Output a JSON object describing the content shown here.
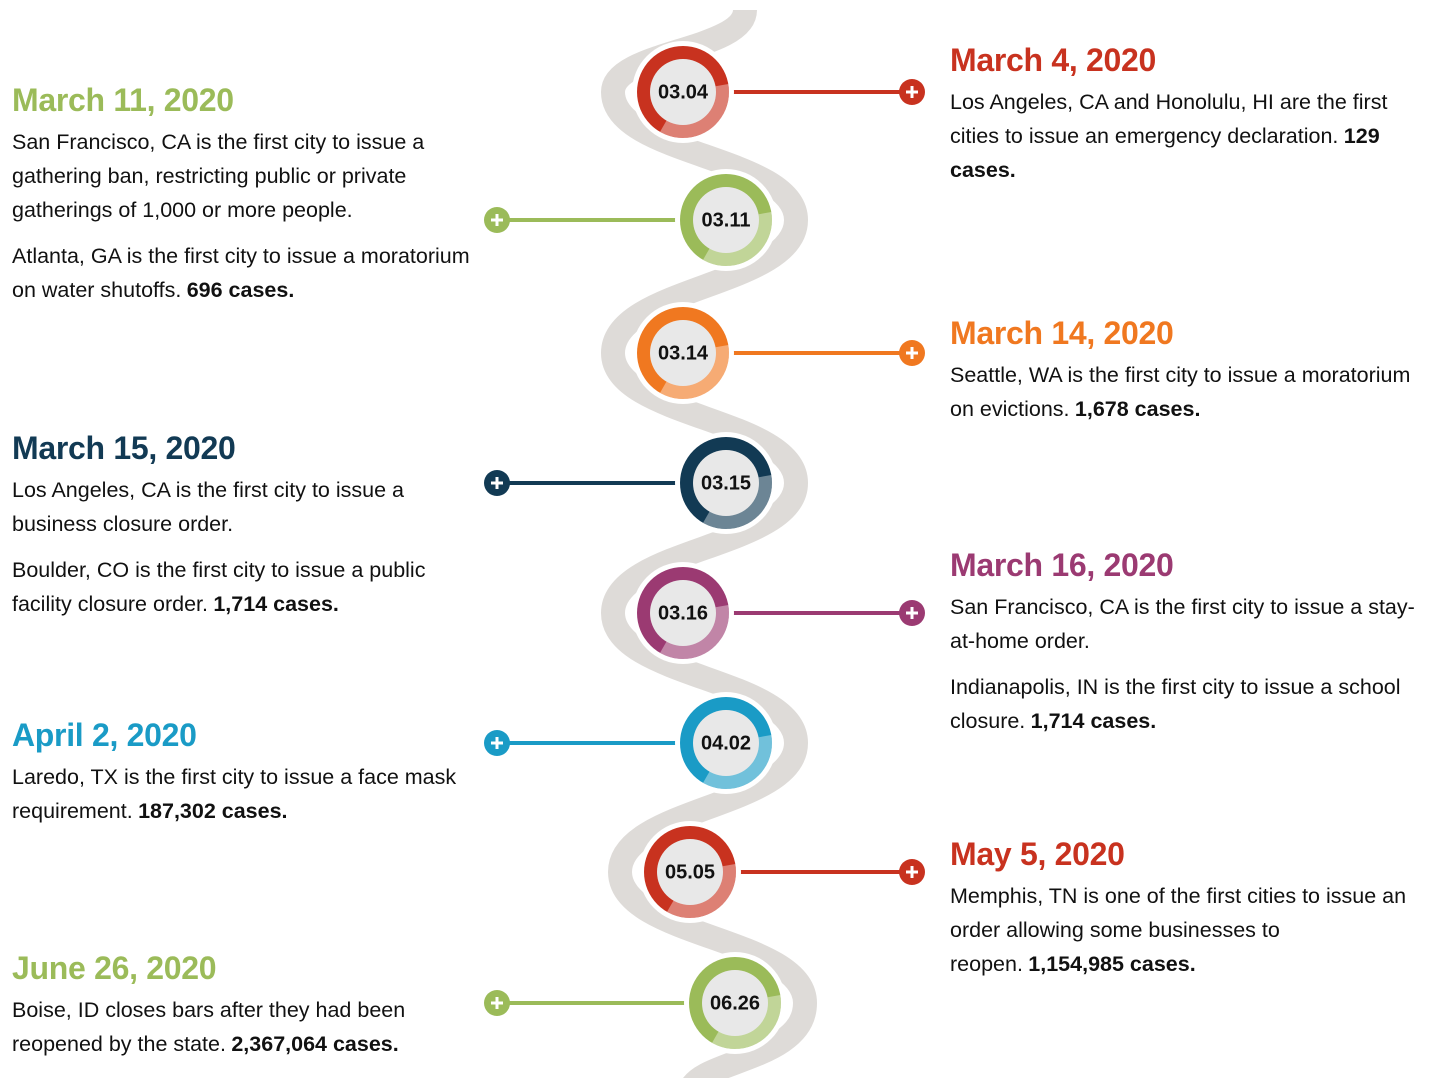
{
  "events": [
    {
      "date": "03.04",
      "title": "March 4, 2020",
      "color": "#c8321f",
      "paragraphs": [
        {
          "text": "Los Angeles, CA and Honolulu, HI are the first cities to issue an emergency declaration.",
          "bold": "129 cases."
        }
      ]
    },
    {
      "date": "03.11",
      "title": "March 11, 2020",
      "color": "#9bbb59",
      "paragraphs": [
        {
          "text": "San Francisco, CA is the first city to issue a gathering ban, restricting public or private gatherings of 1,000 or more people."
        },
        {
          "text": "Atlanta, GA is the first city to issue a moratorium on water shutoffs.",
          "bold": "696 cases."
        }
      ]
    },
    {
      "date": "03.14",
      "title": "March 14, 2020",
      "color": "#f07820",
      "paragraphs": [
        {
          "text": "Seattle, WA is the first city to issue a moratorium on evictions.",
          "bold": "1,678 cases."
        }
      ]
    },
    {
      "date": "03.15",
      "title": "March 15, 2020",
      "color": "#123a54",
      "paragraphs": [
        {
          "text": "Los Angeles, CA is the first city to issue a business closure order."
        },
        {
          "text": "Boulder, CO is the first city to issue a public facility closure order.",
          "bold": "1,714 cases."
        }
      ]
    },
    {
      "date": "03.16",
      "title": "March 16, 2020",
      "color": "#9b3a72",
      "paragraphs": [
        {
          "text": "San Francisco, CA is the first city to issue a stay-at-home order."
        },
        {
          "text": "Indianapolis, IN is the first city to issue a school closure.",
          "bold": "1,714 cases."
        }
      ]
    },
    {
      "date": "04.02",
      "title": "April 2, 2020",
      "color": "#1a9bc6",
      "paragraphs": [
        {
          "text": "Laredo, TX is the first city to issue a face mask requirement.",
          "bold": "187,302 cases."
        }
      ]
    },
    {
      "date": "05.05",
      "title": "May 5, 2020",
      "color": "#c8321f",
      "paragraphs": [
        {
          "text": "Memphis, TN is one of the first cities to issue an order allowing some businesses to reopen.",
          "bold": "1,154,985 cases."
        }
      ]
    },
    {
      "date": "06.26",
      "title": "June 26, 2020",
      "color": "#9bbb59",
      "paragraphs": [
        {
          "text": "Boise, ID closes bars after they had been reopened by the state.",
          "bold": "2,367,064 cases."
        }
      ]
    }
  ]
}
